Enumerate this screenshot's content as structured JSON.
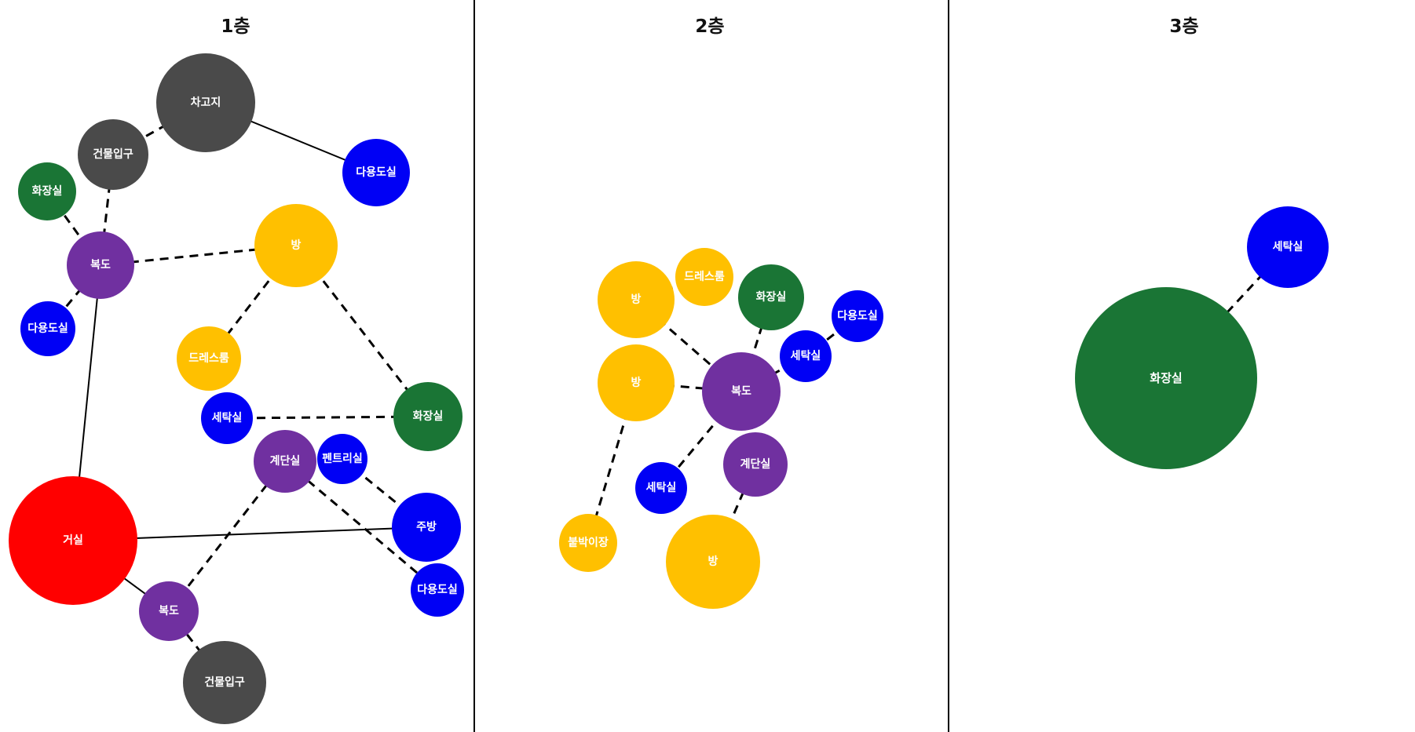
{
  "floors": [
    {
      "title": "1층",
      "rooms": [
        {
          "id": "garage",
          "label": "차고지",
          "type": "entry"
        },
        {
          "id": "entrance-top",
          "label": "건물입구",
          "type": "entry"
        },
        {
          "id": "utility-top",
          "label": "다용도실",
          "type": "service"
        },
        {
          "id": "bath",
          "label": "화장실",
          "type": "bath"
        },
        {
          "id": "hall-top",
          "label": "복도",
          "type": "circulation"
        },
        {
          "id": "room",
          "label": "방",
          "type": "room"
        },
        {
          "id": "utility-left",
          "label": "다용도실",
          "type": "service"
        },
        {
          "id": "dress",
          "label": "드레스룸",
          "type": "room"
        },
        {
          "id": "laundry",
          "label": "세탁실",
          "type": "service"
        },
        {
          "id": "bath-right",
          "label": "화장실",
          "type": "bath"
        },
        {
          "id": "stairs",
          "label": "계단실",
          "type": "circulation"
        },
        {
          "id": "pantry",
          "label": "펜트리실",
          "type": "service"
        },
        {
          "id": "kitchen",
          "label": "주방",
          "type": "service"
        },
        {
          "id": "living",
          "label": "거실",
          "type": "living"
        },
        {
          "id": "utility-bottom",
          "label": "다용도실",
          "type": "service"
        },
        {
          "id": "hall-bottom",
          "label": "복도",
          "type": "circulation"
        },
        {
          "id": "entrance-bottom",
          "label": "건물입구",
          "type": "entry"
        }
      ],
      "links": [
        {
          "from": "garage",
          "to": "entrance-top",
          "style": "dashed"
        },
        {
          "from": "garage",
          "to": "utility-top",
          "style": "solid"
        },
        {
          "from": "entrance-top",
          "to": "hall-top",
          "style": "dashed"
        },
        {
          "from": "bath",
          "to": "hall-top",
          "style": "dashed"
        },
        {
          "from": "hall-top",
          "to": "room",
          "style": "dashed"
        },
        {
          "from": "hall-top",
          "to": "utility-left",
          "style": "dashed"
        },
        {
          "from": "hall-top",
          "to": "living",
          "style": "solid"
        },
        {
          "from": "room",
          "to": "dress",
          "style": "dashed"
        },
        {
          "from": "room",
          "to": "bath-right",
          "style": "dashed"
        },
        {
          "from": "laundry",
          "to": "bath-right",
          "style": "dashed"
        },
        {
          "from": "stairs",
          "to": "hall-bottom",
          "style": "dashed"
        },
        {
          "from": "stairs",
          "to": "utility-bottom",
          "style": "dashed"
        },
        {
          "from": "pantry",
          "to": "kitchen",
          "style": "dashed"
        },
        {
          "from": "living",
          "to": "kitchen",
          "style": "solid"
        },
        {
          "from": "living",
          "to": "hall-bottom",
          "style": "solid"
        },
        {
          "from": "hall-bottom",
          "to": "entrance-bottom",
          "style": "dashed"
        }
      ]
    },
    {
      "title": "2층",
      "rooms": [
        {
          "id": "room-a",
          "label": "방",
          "type": "room"
        },
        {
          "id": "dress",
          "label": "드레스룸",
          "type": "room"
        },
        {
          "id": "bath",
          "label": "화장실",
          "type": "bath"
        },
        {
          "id": "utility",
          "label": "다용도실",
          "type": "service"
        },
        {
          "id": "laundry-a",
          "label": "세탁실",
          "type": "service"
        },
        {
          "id": "room-b",
          "label": "방",
          "type": "room"
        },
        {
          "id": "hall",
          "label": "복도",
          "type": "circulation"
        },
        {
          "id": "stairs",
          "label": "계단실",
          "type": "circulation"
        },
        {
          "id": "laundry-b",
          "label": "세탁실",
          "type": "service"
        },
        {
          "id": "closet",
          "label": "붙박이장",
          "type": "room"
        },
        {
          "id": "room-c",
          "label": "방",
          "type": "room"
        }
      ],
      "links": [
        {
          "from": "room-a",
          "to": "dress",
          "style": "dashed"
        },
        {
          "from": "room-a",
          "to": "hall",
          "style": "dashed"
        },
        {
          "from": "room-b",
          "to": "hall",
          "style": "dashed"
        },
        {
          "from": "room-b",
          "to": "closet",
          "style": "dashed"
        },
        {
          "from": "bath",
          "to": "hall",
          "style": "dashed"
        },
        {
          "from": "utility",
          "to": "laundry-a",
          "style": "dashed"
        },
        {
          "from": "laundry-a",
          "to": "hall",
          "style": "dashed"
        },
        {
          "from": "hall",
          "to": "stairs",
          "style": "dashed"
        },
        {
          "from": "hall",
          "to": "laundry-b",
          "style": "dashed"
        },
        {
          "from": "stairs",
          "to": "room-c",
          "style": "dashed"
        }
      ]
    },
    {
      "title": "3층",
      "rooms": [
        {
          "id": "laundry",
          "label": "세탁실",
          "type": "service"
        },
        {
          "id": "bath",
          "label": "화장실",
          "type": "bath"
        }
      ],
      "links": [
        {
          "from": "bath",
          "to": "laundry",
          "style": "dashed"
        }
      ]
    }
  ],
  "colors": {
    "entry": "#4a4a4a",
    "service": "#0000f5",
    "bath": "#1a7535",
    "circulation": "#7030a0",
    "room": "#ffc000",
    "living": "#ff0000",
    "line": "#000000",
    "divider": "#000000"
  }
}
